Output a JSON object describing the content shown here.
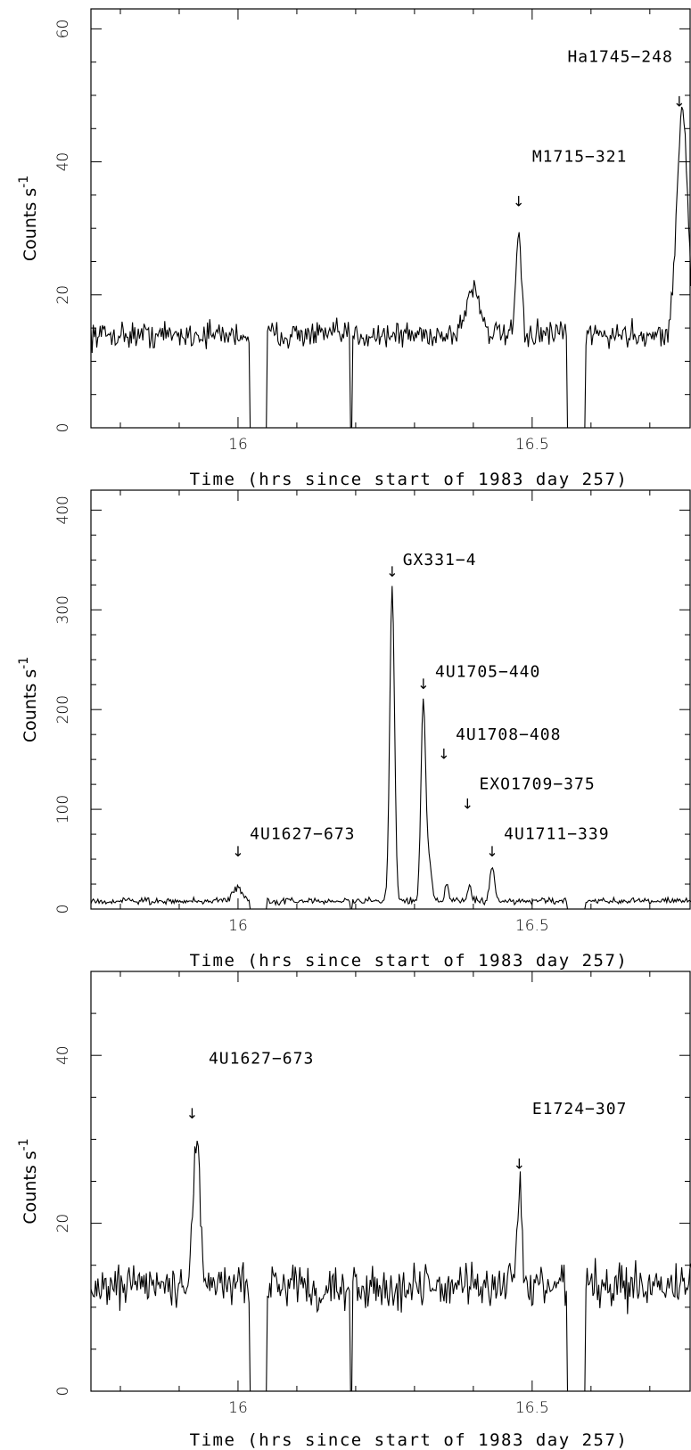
{
  "chart_data": [
    {
      "type": "line",
      "xlabel": "Time (hrs since start of 1983 day 257)",
      "ylabel_base": "Counts s",
      "ylabel_exp": "-1",
      "xlim": [
        15.75,
        16.77
      ],
      "ylim": [
        0,
        63
      ],
      "xticks": [
        16,
        16.5
      ],
      "xtick_labels": [
        "16",
        "16.5"
      ],
      "yticks": [
        0,
        20,
        40,
        60
      ],
      "ytick_labels": [
        "0",
        "20",
        "40",
        "60"
      ],
      "grid": false,
      "baseline": 14,
      "noise": 1.4,
      "gaps": [
        [
          16.02,
          16.05
        ],
        [
          16.19,
          16.195
        ],
        [
          16.56,
          16.59
        ]
      ],
      "peaks": [
        {
          "x": 16.4,
          "height": 7,
          "width": 0.012
        },
        {
          "x": 16.477,
          "height": 16,
          "width": 0.004
        },
        {
          "x": 16.755,
          "height": 34,
          "width": 0.009
        }
      ],
      "annotations": [
        {
          "label": "Ha1745−248",
          "x": 16.75,
          "y": 49,
          "label_x": 16.56,
          "label_y": 55,
          "anchor": "start"
        },
        {
          "label": "M1715−321",
          "x": 16.477,
          "y": 34,
          "label_x": 16.5,
          "label_y": 40,
          "anchor": "start"
        }
      ]
    },
    {
      "type": "line",
      "xlabel": "Time (hrs since start of 1983 day 257)",
      "ylabel_base": "Counts s",
      "ylabel_exp": "-1",
      "xlim": [
        15.75,
        16.77
      ],
      "ylim": [
        0,
        420
      ],
      "xticks": [
        16,
        16.5
      ],
      "xtick_labels": [
        "16",
        "16.5"
      ],
      "yticks": [
        0,
        100,
        200,
        300,
        400
      ],
      "ytick_labels": [
        "0",
        "100",
        "200",
        "300",
        "400"
      ],
      "grid": false,
      "baseline": 8,
      "noise": 2.2,
      "gaps": [
        [
          16.02,
          16.05
        ],
        [
          16.19,
          16.195
        ],
        [
          16.56,
          16.59
        ]
      ],
      "peaks": [
        {
          "x": 16.0,
          "height": 13,
          "width": 0.009
        },
        {
          "x": 16.262,
          "height": 315,
          "width": 0.004
        },
        {
          "x": 16.315,
          "height": 200,
          "width": 0.004
        },
        {
          "x": 16.325,
          "height": 40,
          "width": 0.004
        },
        {
          "x": 16.355,
          "height": 18,
          "width": 0.003
        },
        {
          "x": 16.393,
          "height": 16,
          "width": 0.003
        },
        {
          "x": 16.432,
          "height": 35,
          "width": 0.004
        }
      ],
      "annotations": [
        {
          "label": "GX331−4",
          "x": 16.262,
          "y": 338,
          "label_x": 16.28,
          "label_y": 345,
          "anchor": "start"
        },
        {
          "label": "4U1705−440",
          "x": 16.315,
          "y": 225,
          "label_x": 16.335,
          "label_y": 233,
          "anchor": "start"
        },
        {
          "label": "4U1708−408",
          "x": 16.35,
          "y": 155,
          "label_x": 16.37,
          "label_y": 170,
          "anchor": "start"
        },
        {
          "label": "EXO1709−375",
          "x": 16.39,
          "y": 105,
          "label_x": 16.41,
          "label_y": 120,
          "anchor": "start"
        },
        {
          "label": "4U1627−673",
          "x": 16.0,
          "y": 57,
          "label_x": 16.02,
          "label_y": 70,
          "anchor": "start"
        },
        {
          "label": "4U1711−339",
          "x": 16.432,
          "y": 57,
          "label_x": 16.452,
          "label_y": 70,
          "anchor": "start"
        }
      ]
    },
    {
      "type": "line",
      "xlabel": "Time (hrs since start of 1983 day 257)",
      "ylabel_base": "Counts s",
      "ylabel_exp": "-1",
      "xlim": [
        15.75,
        16.77
      ],
      "ylim": [
        0,
        50
      ],
      "xticks": [
        16,
        16.5
      ],
      "xtick_labels": [
        "16",
        "16.5"
      ],
      "yticks": [
        0,
        20,
        40
      ],
      "ytick_labels": [
        "0",
        "20",
        "40"
      ],
      "grid": false,
      "baseline": 12.5,
      "noise": 1.8,
      "gaps": [
        [
          16.02,
          16.05
        ],
        [
          16.19,
          16.195
        ],
        [
          16.56,
          16.59
        ]
      ],
      "peaks": [
        {
          "x": 15.93,
          "height": 17,
          "width": 0.006
        },
        {
          "x": 16.478,
          "height": 12,
          "width": 0.004
        }
      ],
      "annotations": [
        {
          "label": "4U1627−673",
          "x": 15.922,
          "y": 33,
          "label_x": 15.95,
          "label_y": 39,
          "anchor": "start"
        },
        {
          "label": "E1724−307",
          "x": 16.478,
          "y": 27,
          "label_x": 16.5,
          "label_y": 33,
          "anchor": "start"
        }
      ]
    }
  ]
}
